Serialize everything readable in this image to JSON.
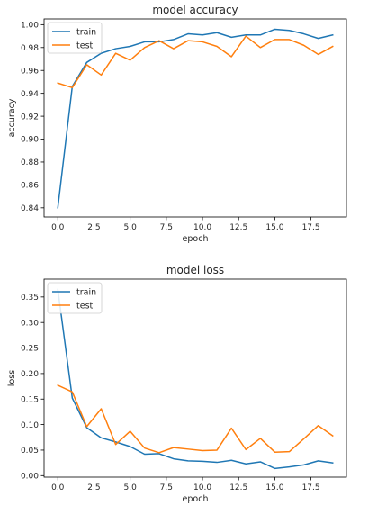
{
  "chart_data": [
    {
      "type": "line",
      "title": "model accuracy",
      "xlabel": "epoch",
      "ylabel": "accuracy",
      "x": [
        0,
        1,
        2,
        3,
        4,
        5,
        6,
        7,
        8,
        9,
        10,
        11,
        12,
        13,
        14,
        15,
        16,
        17,
        18,
        19
      ],
      "xlim": [
        -0.95,
        19.95
      ],
      "ylim": [
        0.832,
        1.005
      ],
      "xticks": [
        0.0,
        2.5,
        5.0,
        7.5,
        10.0,
        12.5,
        15.0,
        17.5
      ],
      "xtick_labels": [
        "0.0",
        "2.5",
        "5.0",
        "7.5",
        "10.0",
        "12.5",
        "15.0",
        "17.5"
      ],
      "yticks": [
        0.84,
        0.86,
        0.88,
        0.9,
        0.92,
        0.94,
        0.96,
        0.98,
        1.0
      ],
      "ytick_labels": [
        "0.84",
        "0.86",
        "0.88",
        "0.90",
        "0.92",
        "0.94",
        "0.96",
        "0.98",
        "1.00"
      ],
      "grid": false,
      "legend": "upper-left",
      "series": [
        {
          "name": "train",
          "color": "#1f77b4",
          "values": [
            0.84,
            0.946,
            0.967,
            0.975,
            0.979,
            0.981,
            0.985,
            0.985,
            0.987,
            0.992,
            0.991,
            0.993,
            0.989,
            0.991,
            0.991,
            0.996,
            0.995,
            0.992,
            0.988,
            0.991
          ]
        },
        {
          "name": "test",
          "color": "#ff7f0e",
          "values": [
            0.949,
            0.945,
            0.965,
            0.956,
            0.975,
            0.969,
            0.98,
            0.986,
            0.979,
            0.986,
            0.985,
            0.981,
            0.972,
            0.99,
            0.98,
            0.987,
            0.987,
            0.982,
            0.974,
            0.981
          ]
        }
      ]
    },
    {
      "type": "line",
      "title": "model loss",
      "xlabel": "epoch",
      "ylabel": "loss",
      "x": [
        0,
        1,
        2,
        3,
        4,
        5,
        6,
        7,
        8,
        9,
        10,
        11,
        12,
        13,
        14,
        15,
        16,
        17,
        18,
        19
      ],
      "xlim": [
        -0.95,
        19.95
      ],
      "ylim": [
        -0.003,
        0.385
      ],
      "xticks": [
        0.0,
        2.5,
        5.0,
        7.5,
        10.0,
        12.5,
        15.0,
        17.5
      ],
      "xtick_labels": [
        "0.0",
        "2.5",
        "5.0",
        "7.5",
        "10.0",
        "12.5",
        "15.0",
        "17.5"
      ],
      "yticks": [
        0.0,
        0.05,
        0.1,
        0.15,
        0.2,
        0.25,
        0.3,
        0.35
      ],
      "ytick_labels": [
        "0.00",
        "0.05",
        "0.10",
        "0.15",
        "0.20",
        "0.25",
        "0.30",
        "0.35"
      ],
      "grid": false,
      "legend": "upper-left",
      "series": [
        {
          "name": "train",
          "color": "#1f77b4",
          "values": [
            0.365,
            0.152,
            0.094,
            0.074,
            0.066,
            0.057,
            0.042,
            0.043,
            0.033,
            0.029,
            0.028,
            0.026,
            0.03,
            0.023,
            0.027,
            0.014,
            0.017,
            0.021,
            0.029,
            0.025
          ]
        },
        {
          "name": "test",
          "color": "#ff7f0e",
          "values": [
            0.177,
            0.164,
            0.096,
            0.131,
            0.061,
            0.087,
            0.054,
            0.045,
            0.055,
            0.052,
            0.049,
            0.05,
            0.093,
            0.051,
            0.073,
            0.046,
            0.047,
            0.072,
            0.098,
            0.078
          ]
        }
      ]
    }
  ]
}
